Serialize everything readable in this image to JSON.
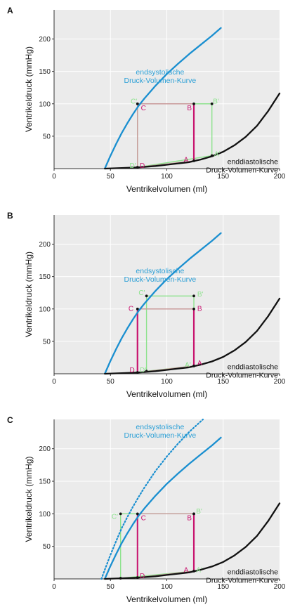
{
  "chart_data": [
    {
      "panel": "A",
      "type": "line",
      "xlabel": "Ventrikelvolumen (ml)",
      "ylabel": "Ventrikeldruck (mmHg)",
      "xlim": [
        0,
        200
      ],
      "ylim": [
        0,
        245
      ],
      "x_ticks": [
        0,
        50,
        100,
        150,
        200
      ],
      "y_ticks": [
        50,
        100,
        150,
        200
      ],
      "grid": true,
      "colors": {
        "esp": "#1a8fd0",
        "edp": "#111111",
        "loop": "#c8136e",
        "loop_alt": "#8de38d",
        "loop_c": "#c99a9a",
        "label_esp": "#2a9fd6"
      },
      "annotations": [
        {
          "lines": [
            "endsystolische",
            "Druck-Volumen-Kurve"
          ],
          "x": 94,
          "y": 145,
          "color": "#2a9fd6"
        },
        {
          "lines": [
            "enddiastolische",
            "Druck-Volumen-Kurve"
          ],
          "x": 200,
          "y": 7,
          "color": "#111111"
        }
      ],
      "series": [
        {
          "id": "esp",
          "style": "solid",
          "x": [
            45,
            50,
            55,
            60,
            65,
            70,
            75,
            80,
            90,
            100,
            110,
            120,
            130,
            140,
            148
          ],
          "y": [
            0,
            20,
            38,
            55,
            70,
            84,
            97,
            108,
            128,
            146,
            162,
            177,
            191,
            205,
            217
          ]
        },
        {
          "id": "edp",
          "style": "solid",
          "x": [
            45,
            60,
            75,
            90,
            100,
            110,
            120,
            125,
            130,
            140,
            150,
            160,
            170,
            180,
            190,
            200
          ],
          "y": [
            0,
            1,
            2,
            4,
            6,
            8,
            10,
            12,
            14,
            19,
            26,
            36,
            49,
            66,
            89,
            116
          ]
        }
      ],
      "loops": [
        {
          "style": "alt",
          "points": [
            [
              74,
              100
            ],
            [
              140,
              100
            ],
            [
              140,
              20
            ],
            [
              74,
              2
            ]
          ]
        },
        {
          "style": "main",
          "points": [
            [
              74,
              100
            ],
            [
              124,
              100
            ],
            [
              124,
              12
            ],
            [
              74,
              2
            ]
          ]
        }
      ],
      "labels": [
        {
          "text": "C'",
          "x": 68,
          "y": 104,
          "color": "#8de38d"
        },
        {
          "text": "C",
          "x": 77,
          "y": 94,
          "color": "#c8136e"
        },
        {
          "text": "B",
          "x": 118,
          "y": 94,
          "color": "#c8136e"
        },
        {
          "text": "B'",
          "x": 141,
          "y": 104,
          "color": "#8de38d"
        },
        {
          "text": "A'",
          "x": 142,
          "y": 23,
          "color": "#8de38d"
        },
        {
          "text": "A",
          "x": 115,
          "y": 14,
          "color": "#c8136e"
        },
        {
          "text": "D'",
          "x": 67,
          "y": 5,
          "color": "#8de38d"
        },
        {
          "text": "D",
          "x": 76,
          "y": 5,
          "color": "#c8136e"
        }
      ]
    },
    {
      "panel": "B",
      "type": "line",
      "xlabel": "Ventrikelvolumen (ml)",
      "ylabel": "Ventrikeldruck (mmHg)",
      "xlim": [
        0,
        200
      ],
      "ylim": [
        0,
        245
      ],
      "x_ticks": [
        0,
        50,
        100,
        150,
        200
      ],
      "y_ticks": [
        50,
        100,
        150,
        200
      ],
      "grid": true,
      "colors": {
        "esp": "#1a8fd0",
        "edp": "#111111",
        "loop": "#c8136e",
        "loop_alt": "#8de38d",
        "loop_c": "#c99a9a",
        "label_esp": "#2a9fd6"
      },
      "annotations": [
        {
          "lines": [
            "endsystolische",
            "Druck-Volumen-Kurve"
          ],
          "x": 94,
          "y": 155,
          "color": "#2a9fd6"
        },
        {
          "lines": [
            "enddiastolische",
            "Druck-Volumen-Kurve"
          ],
          "x": 200,
          "y": 7,
          "color": "#111111"
        }
      ],
      "series": [
        {
          "id": "esp",
          "style": "solid",
          "x": [
            45,
            50,
            55,
            60,
            65,
            70,
            75,
            80,
            90,
            100,
            110,
            120,
            130,
            140,
            148
          ],
          "y": [
            0,
            20,
            38,
            55,
            70,
            84,
            97,
            108,
            128,
            146,
            162,
            177,
            191,
            205,
            217
          ]
        },
        {
          "id": "edp",
          "style": "solid",
          "x": [
            45,
            60,
            75,
            90,
            100,
            110,
            120,
            125,
            130,
            140,
            150,
            160,
            170,
            180,
            190,
            200
          ],
          "y": [
            0,
            1,
            2,
            4,
            6,
            8,
            10,
            12,
            14,
            19,
            26,
            36,
            49,
            66,
            89,
            116
          ]
        }
      ],
      "loops": [
        {
          "style": "alt",
          "points": [
            [
              82,
              120
            ],
            [
              124,
              120
            ],
            [
              124,
              12
            ],
            [
              82,
              4
            ]
          ]
        },
        {
          "style": "main",
          "points": [
            [
              74,
              100
            ],
            [
              124,
              100
            ],
            [
              124,
              12
            ],
            [
              74,
              2
            ]
          ]
        }
      ],
      "labels": [
        {
          "text": "C'",
          "x": 75,
          "y": 125,
          "color": "#8de38d"
        },
        {
          "text": "B'",
          "x": 127,
          "y": 123,
          "color": "#8de38d"
        },
        {
          "text": "C",
          "x": 66,
          "y": 101,
          "color": "#c8136e"
        },
        {
          "text": "B",
          "x": 127,
          "y": 101,
          "color": "#c8136e"
        },
        {
          "text": "A'",
          "x": 116,
          "y": 14,
          "color": "#8de38d"
        },
        {
          "text": "A",
          "x": 127,
          "y": 17,
          "color": "#c8136e"
        },
        {
          "text": "D",
          "x": 67,
          "y": 6,
          "color": "#c8136e"
        },
        {
          "text": "D'",
          "x": 76,
          "y": 6,
          "color": "#8de38d"
        }
      ]
    },
    {
      "panel": "C",
      "type": "line",
      "xlabel": "Ventrikelvolumen (ml)",
      "ylabel": "Ventrikeldruck (mmHg)",
      "xlim": [
        0,
        200
      ],
      "ylim": [
        0,
        245
      ],
      "x_ticks": [
        0,
        50,
        100,
        150,
        200
      ],
      "y_ticks": [
        50,
        100,
        150,
        200
      ],
      "grid": true,
      "colors": {
        "esp": "#1a8fd0",
        "edp": "#111111",
        "loop": "#c8136e",
        "loop_alt": "#8de38d",
        "loop_c": "#c99a9a",
        "label_esp": "#2a9fd6"
      },
      "annotations": [
        {
          "lines": [
            "endsystolische",
            "Druck-Volumen-Kurve"
          ],
          "x": 94,
          "y": 230,
          "color": "#2a9fd6"
        },
        {
          "lines": [
            "enddiastolische",
            "Druck-Volumen-Kurve"
          ],
          "x": 200,
          "y": 7,
          "color": "#111111"
        }
      ],
      "series": [
        {
          "id": "esp_shifted",
          "style": "dotted",
          "x": [
            42,
            45,
            50,
            55,
            60,
            65,
            70,
            75,
            80,
            90,
            100,
            110,
            120,
            132
          ],
          "y": [
            0,
            14,
            37,
            58,
            78,
            95,
            111,
            126,
            140,
            166,
            188,
            208,
            226,
            245
          ]
        },
        {
          "id": "esp",
          "style": "solid",
          "x": [
            45,
            50,
            55,
            60,
            65,
            70,
            75,
            80,
            90,
            100,
            110,
            120,
            130,
            140,
            148
          ],
          "y": [
            0,
            20,
            38,
            55,
            70,
            84,
            97,
            108,
            128,
            146,
            162,
            177,
            191,
            205,
            217
          ]
        },
        {
          "id": "edp",
          "style": "solid",
          "x": [
            45,
            60,
            75,
            90,
            100,
            110,
            120,
            125,
            130,
            140,
            150,
            160,
            170,
            180,
            190,
            200
          ],
          "y": [
            0,
            1,
            2,
            4,
            6,
            8,
            10,
            12,
            14,
            19,
            26,
            36,
            49,
            66,
            89,
            116
          ]
        }
      ],
      "loops": [
        {
          "style": "alt",
          "points": [
            [
              59,
              100
            ],
            [
              124,
              100
            ],
            [
              124,
              12
            ],
            [
              59,
              1
            ]
          ]
        },
        {
          "style": "main",
          "points": [
            [
              74,
              100
            ],
            [
              124,
              100
            ],
            [
              124,
              12
            ],
            [
              74,
              2
            ]
          ]
        }
      ],
      "labels": [
        {
          "text": "C'",
          "x": 51,
          "y": 96,
          "color": "#8de38d"
        },
        {
          "text": "C",
          "x": 77,
          "y": 94,
          "color": "#c8136e"
        },
        {
          "text": "B",
          "x": 118,
          "y": 94,
          "color": "#c8136e"
        },
        {
          "text": "B'",
          "x": 126,
          "y": 104,
          "color": "#8de38d"
        },
        {
          "text": "A",
          "x": 115,
          "y": 14,
          "color": "#c8136e"
        },
        {
          "text": "A'",
          "x": 126,
          "y": 14,
          "color": "#8de38d"
        },
        {
          "text": "D",
          "x": 76,
          "y": 5,
          "color": "#c8136e"
        }
      ]
    }
  ]
}
